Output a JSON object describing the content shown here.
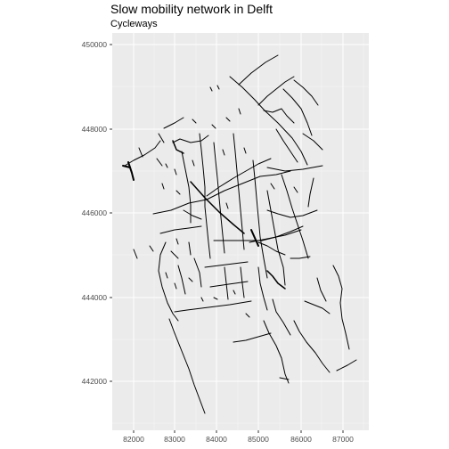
{
  "title": "Slow mobility network in Delft",
  "subtitle": "Cycleways",
  "map": {
    "background_color": "#ebebeb",
    "grid_major_color": "#ffffff",
    "line_color": "#000000",
    "x_ticks": [
      "82000",
      "83000",
      "84000",
      "85000",
      "86000",
      "87000"
    ],
    "y_ticks": [
      "450000",
      "448000",
      "446000",
      "444000",
      "442000"
    ]
  }
}
